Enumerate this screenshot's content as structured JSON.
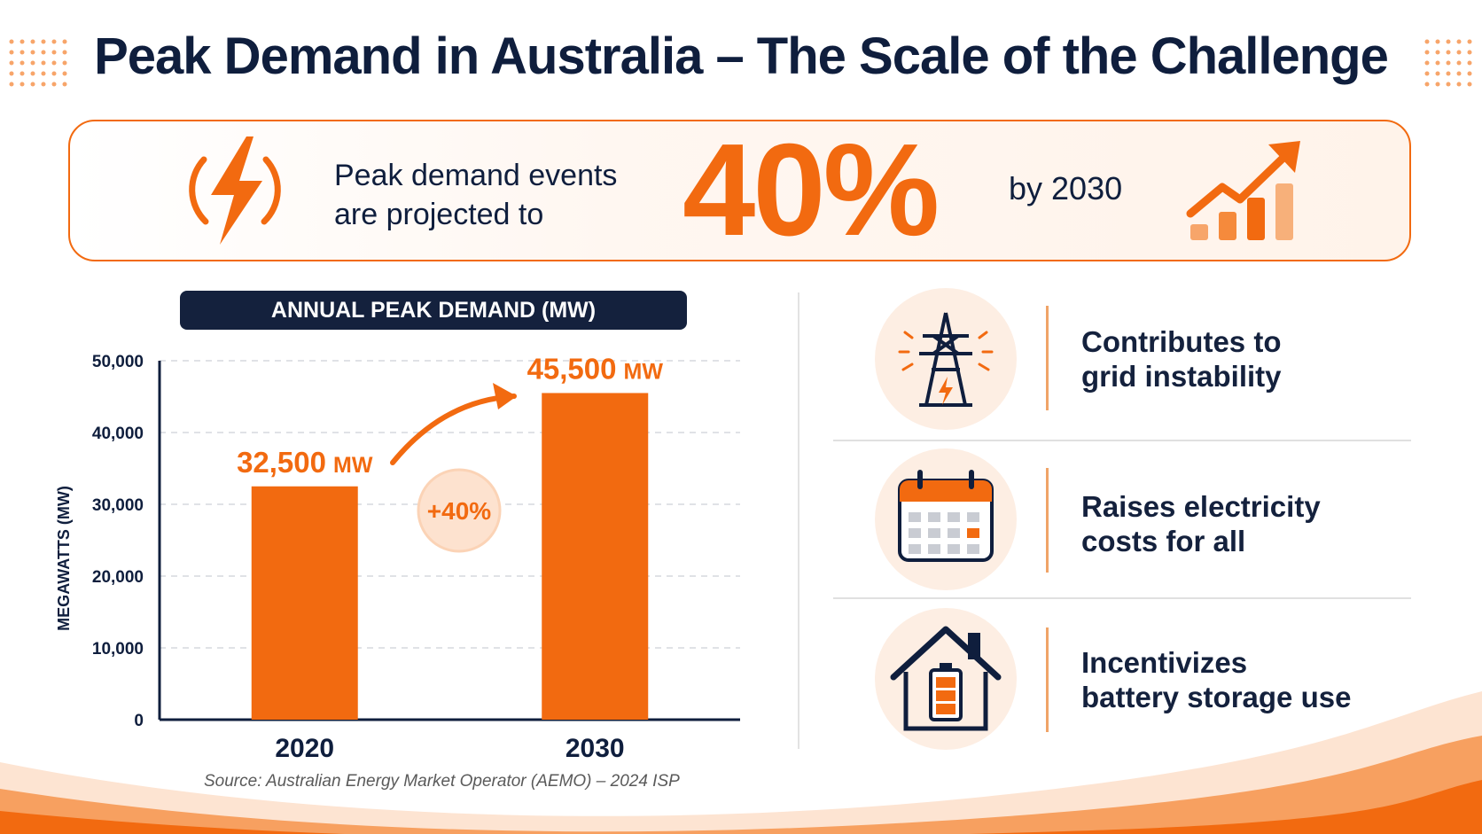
{
  "title": "Peak Demand in Australia – The Scale of the Challenge",
  "banner": {
    "text_line1": "Peak demand events",
    "text_line2": "are projected to",
    "value": "40%",
    "suffix": "by 2030"
  },
  "chart_data": {
    "type": "bar",
    "title": "ANNUAL PEAK DEMAND (MW)",
    "categories": [
      "2020",
      "2030"
    ],
    "values": [
      32500,
      45500
    ],
    "data_labels": [
      "32,500",
      "45,500"
    ],
    "unit_label": "MW",
    "ylabel": "MEGAWATTS (MW)",
    "xlabel": "",
    "ylim": [
      0,
      50000
    ],
    "y_ticks": [
      "0",
      "10,000",
      "20,000",
      "30,000",
      "40,000",
      "50,000"
    ],
    "annotation": "+40%",
    "grid": true
  },
  "items": [
    {
      "icon": "transmission-tower-icon",
      "line1": "Contributes to",
      "line2": "grid instability"
    },
    {
      "icon": "calendar-icon",
      "line1": "Raises electricity",
      "line2": "costs for all"
    },
    {
      "icon": "house-battery-icon",
      "line1": "Incentivizes",
      "line2": "battery storage use"
    }
  ],
  "source": "Source: Australian Energy Market Operator (AEMO) – 2024 ISP",
  "colors": {
    "accent": "#f26a10",
    "navy": "#0f1e3d",
    "soft": "#fdeee3"
  }
}
